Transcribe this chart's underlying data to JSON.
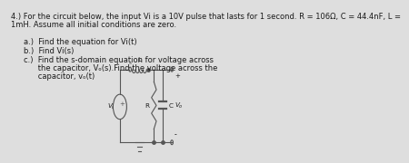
{
  "title_line1": "4.) For the circuit below, the input Vi is a 10V pulse that lasts for 1 second. R = 106Ω, C = 44.4nF, L =",
  "title_line2": "1mH. Assume all initial conditions are zero.",
  "task_a": "a.)  Find the equation for Vi(t)",
  "task_b": "b.)  Find Vi(s)",
  "task_c1": "c.)  Find the s-domain equation for voltage across",
  "task_c2": "      the capacitor, Vₒ(s).Find the voltage across the",
  "task_c3": "      capacitor, vₒ(t)",
  "bg_color": "#dedede",
  "text_color": "#1a1a1a",
  "circuit_color": "#555555",
  "font_size": 6.0,
  "label_font": 5.2
}
